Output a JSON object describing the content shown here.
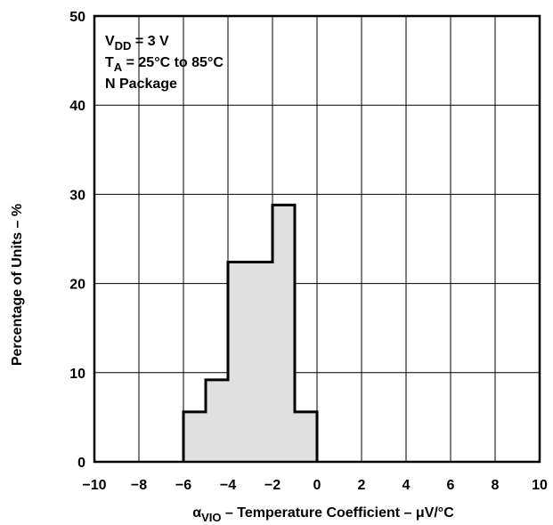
{
  "chart_data": {
    "type": "bar",
    "bin_edges": [
      -6,
      -5,
      -4,
      -3,
      -2,
      -1,
      0
    ],
    "values": [
      5.6,
      9.2,
      22.4,
      22.4,
      28.8,
      5.6
    ],
    "xlim": [
      -10,
      10
    ],
    "ylim": [
      0,
      50
    ],
    "x_ticks": [
      -10,
      -8,
      -6,
      -4,
      -2,
      0,
      2,
      4,
      6,
      8,
      10
    ],
    "y_ticks": [
      0,
      10,
      20,
      30,
      40,
      50
    ],
    "x_tick_labels": [
      "−10",
      "−8",
      "−6",
      "−4",
      "−2",
      "0",
      "2",
      "4",
      "6",
      "8",
      "10"
    ],
    "y_tick_labels": [
      "0",
      "10",
      "20",
      "30",
      "40",
      "50"
    ],
    "grid": true,
    "colors": {
      "fill": "#e0e0e0",
      "outline": "#000000",
      "grid": "#000000"
    },
    "xlabel": {
      "symbol": "α",
      "subscript": "VIO",
      "text": " – Temperature Coefficient – μV/°C"
    },
    "ylabel": "Percentage of Units – %",
    "legend": {
      "placement": "top-left",
      "lines": [
        {
          "main": "V",
          "sub": "DD",
          "rest": " = 3 V"
        },
        {
          "main": "T",
          "sub": "A",
          "rest": " = 25°C to 85°C"
        },
        {
          "main": "N Package",
          "sub": "",
          "rest": ""
        }
      ]
    }
  }
}
